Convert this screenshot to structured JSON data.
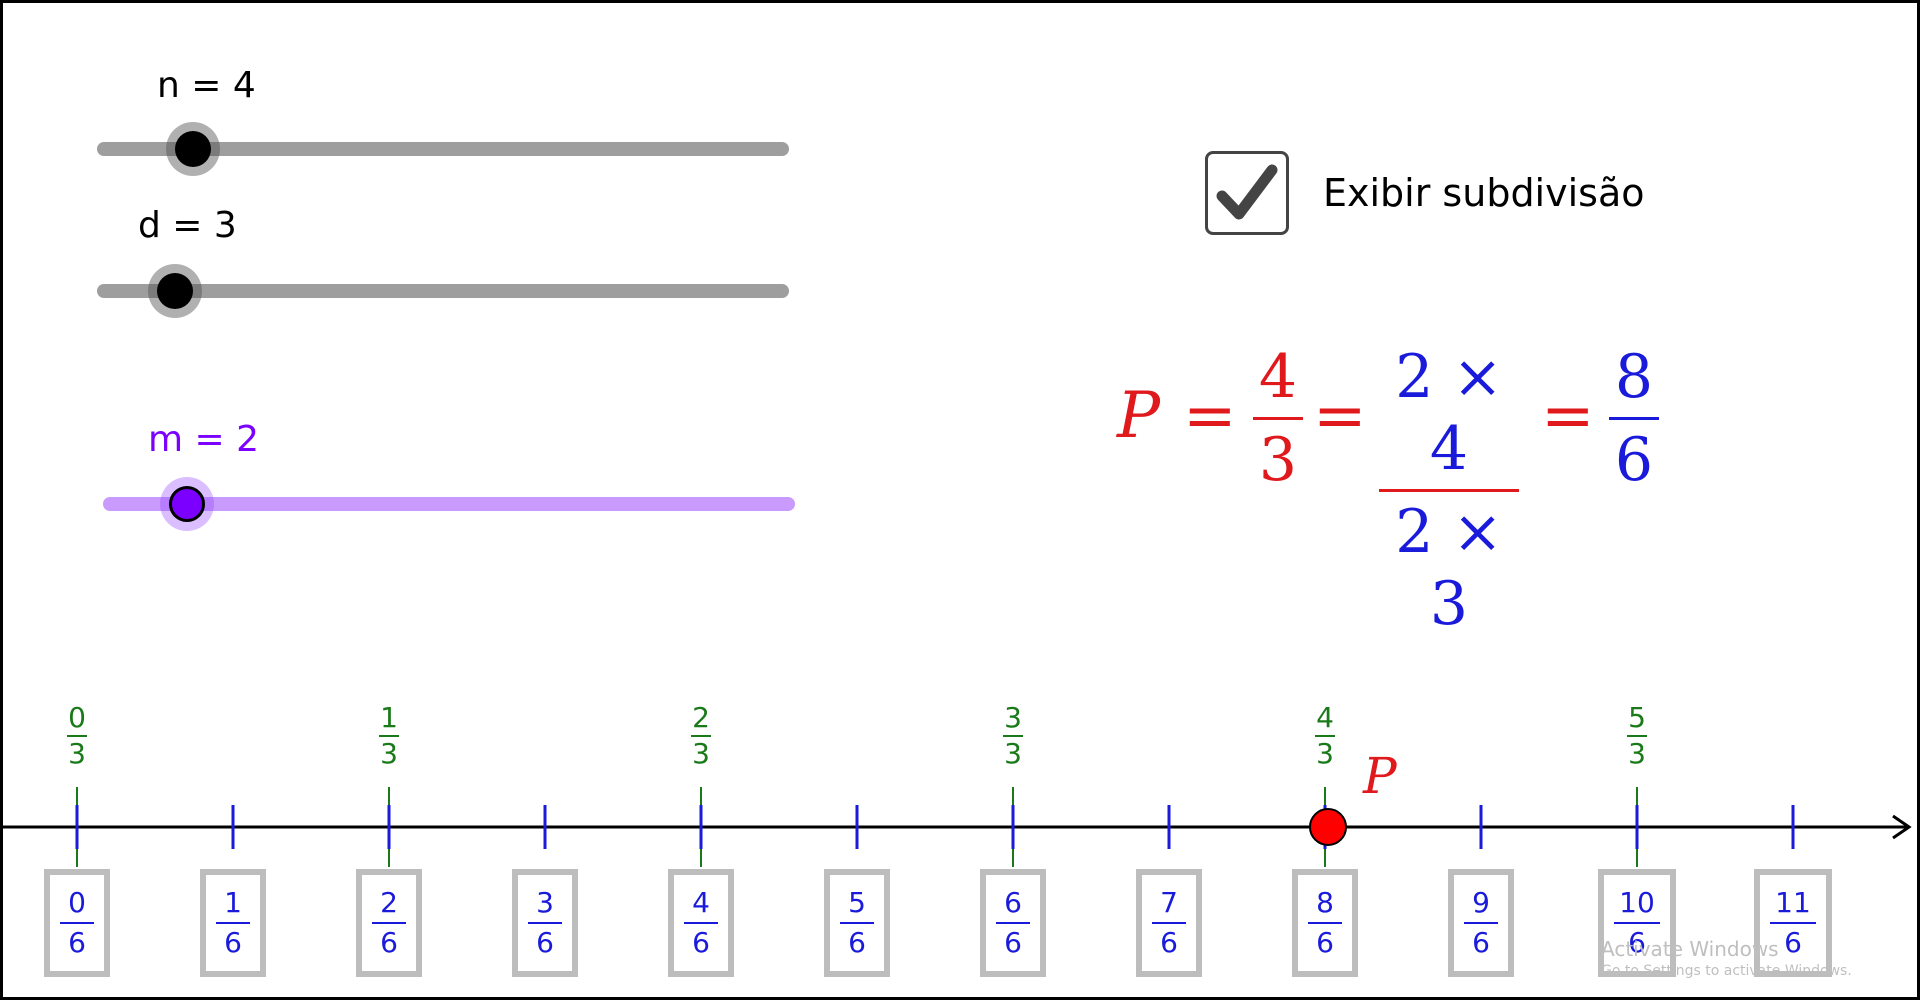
{
  "sliders": [
    {
      "id": "n",
      "label": "n = 4",
      "color": "#000000"
    },
    {
      "id": "d",
      "label": "d = 3",
      "color": "#000000"
    },
    {
      "id": "m",
      "label": "m = 2",
      "color": "#7b00ff"
    }
  ],
  "checkbox": {
    "label": "Exibir subdivisão",
    "checked": true
  },
  "formula": {
    "var": "P",
    "eq": "=",
    "frac1": {
      "num": "4",
      "den": "3"
    },
    "frac2": {
      "num": "2 × 4",
      "den": "2 × 3"
    },
    "frac3": {
      "num": "8",
      "den": "6"
    },
    "red": "#e0191c",
    "blue": "#1a1adb"
  },
  "numberline": {
    "point_label": "P",
    "point_color": "#ff0000",
    "thirds": [
      {
        "num": "0",
        "den": "3"
      },
      {
        "num": "1",
        "den": "3"
      },
      {
        "num": "2",
        "den": "3"
      },
      {
        "num": "3",
        "den": "3"
      },
      {
        "num": "4",
        "den": "3"
      },
      {
        "num": "5",
        "den": "3"
      }
    ],
    "sixths": [
      {
        "num": "0",
        "den": "6"
      },
      {
        "num": "1",
        "den": "6"
      },
      {
        "num": "2",
        "den": "6"
      },
      {
        "num": "3",
        "den": "6"
      },
      {
        "num": "4",
        "den": "6"
      },
      {
        "num": "5",
        "den": "6"
      },
      {
        "num": "6",
        "den": "6"
      },
      {
        "num": "7",
        "den": "6"
      },
      {
        "num": "8",
        "den": "6"
      },
      {
        "num": "9",
        "den": "6"
      },
      {
        "num": "10",
        "den": "6"
      },
      {
        "num": "11",
        "den": "6"
      }
    ],
    "green": "#1a7a1a",
    "blue": "#1a1adb"
  },
  "watermark": {
    "line1": "Activate Windows",
    "line2": "Go to Settings to activate Windows."
  }
}
